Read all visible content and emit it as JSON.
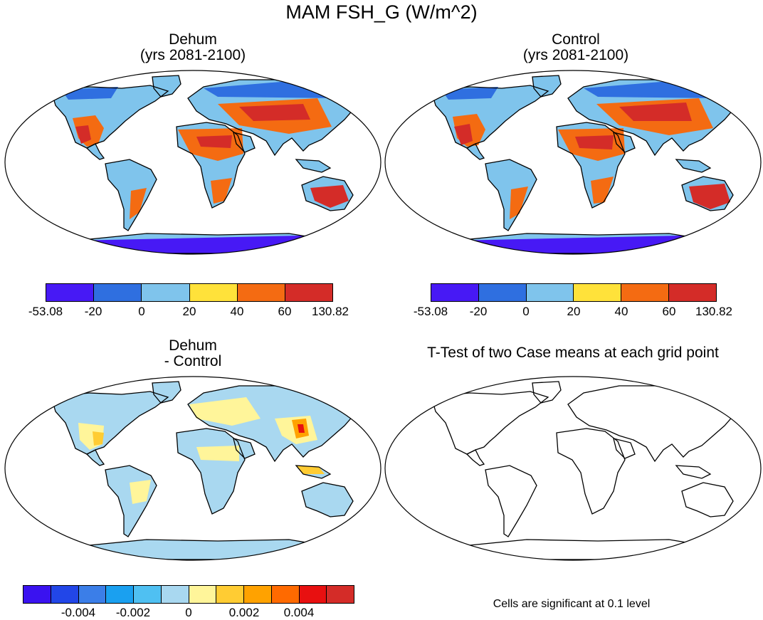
{
  "figure": {
    "title": "MAM FSH_G (W/m^2)"
  },
  "panels": [
    {
      "id": "dehum",
      "title_line1": "Dehum",
      "title_line2": "(yrs 2081-2100)",
      "colorbar": {
        "colors": [
          "#4719f5",
          "#2f6fe0",
          "#7fc4ec",
          "#ffe23a",
          "#f46b12",
          "#d42c28"
        ],
        "labels": [
          "-53.08",
          "-20",
          "0",
          "20",
          "40",
          "60",
          "130.82"
        ]
      }
    },
    {
      "id": "control",
      "title_line1": "Control",
      "title_line2": "(yrs 2081-2100)",
      "colorbar": {
        "colors": [
          "#4719f5",
          "#2f6fe0",
          "#7fc4ec",
          "#ffe23a",
          "#f46b12",
          "#d42c28"
        ],
        "labels": [
          "-53.08",
          "-20",
          "0",
          "20",
          "40",
          "60",
          "130.82"
        ]
      }
    },
    {
      "id": "difference",
      "title_line1": "Dehum",
      "title_line2": "- Control",
      "colorbar": {
        "colors": [
          "#3a12f0",
          "#2246e8",
          "#3b7ee8",
          "#1aa0f0",
          "#4fc0f2",
          "#a9d8f0",
          "#fff59a",
          "#ffcc33",
          "#ffa200",
          "#ff6a00",
          "#e81010",
          "#d42c28"
        ],
        "labels": [
          "-0.004",
          "-0.002",
          "0",
          "0.002",
          "0.004"
        ]
      }
    },
    {
      "id": "ttest",
      "title_line1": "T-Test of two Case means at each grid point",
      "note": "Cells are significant at 0.1 level"
    }
  ]
}
